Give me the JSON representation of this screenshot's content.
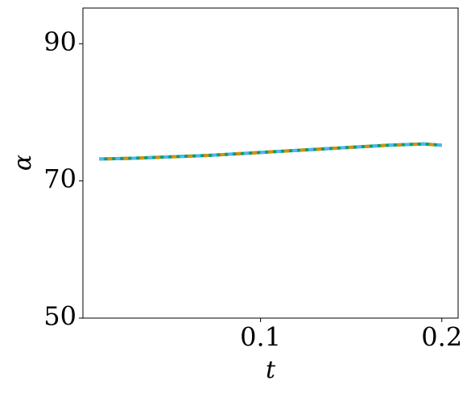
{
  "chart_data": {
    "type": "line",
    "xlabel": "t",
    "ylabel": "α",
    "x": [
      0.011,
      0.03,
      0.05,
      0.07,
      0.09,
      0.11,
      0.13,
      0.15,
      0.17,
      0.19,
      0.2
    ],
    "series": [
      {
        "color": "#029e73",
        "dash": "none",
        "values": [
          73.2,
          73.3,
          73.5,
          73.7,
          74.0,
          74.3,
          74.6,
          74.9,
          75.2,
          75.4,
          75.2
        ]
      },
      {
        "color": "#de8f05",
        "dash": "6 14",
        "values": [
          73.2,
          73.3,
          73.5,
          73.7,
          74.0,
          74.3,
          74.6,
          74.9,
          75.2,
          75.4,
          75.2
        ]
      },
      {
        "color": "#56b4e9",
        "dash": "6 14",
        "values": [
          73.2,
          73.3,
          73.5,
          73.7,
          74.0,
          74.3,
          74.6,
          74.9,
          75.2,
          75.4,
          75.2
        ]
      }
    ],
    "xlim": [
      0.002,
      0.209
    ],
    "ylim": [
      50,
      95.2
    ],
    "xticks": [
      0.1,
      0.2
    ],
    "yticks": [
      50,
      70,
      90
    ]
  }
}
